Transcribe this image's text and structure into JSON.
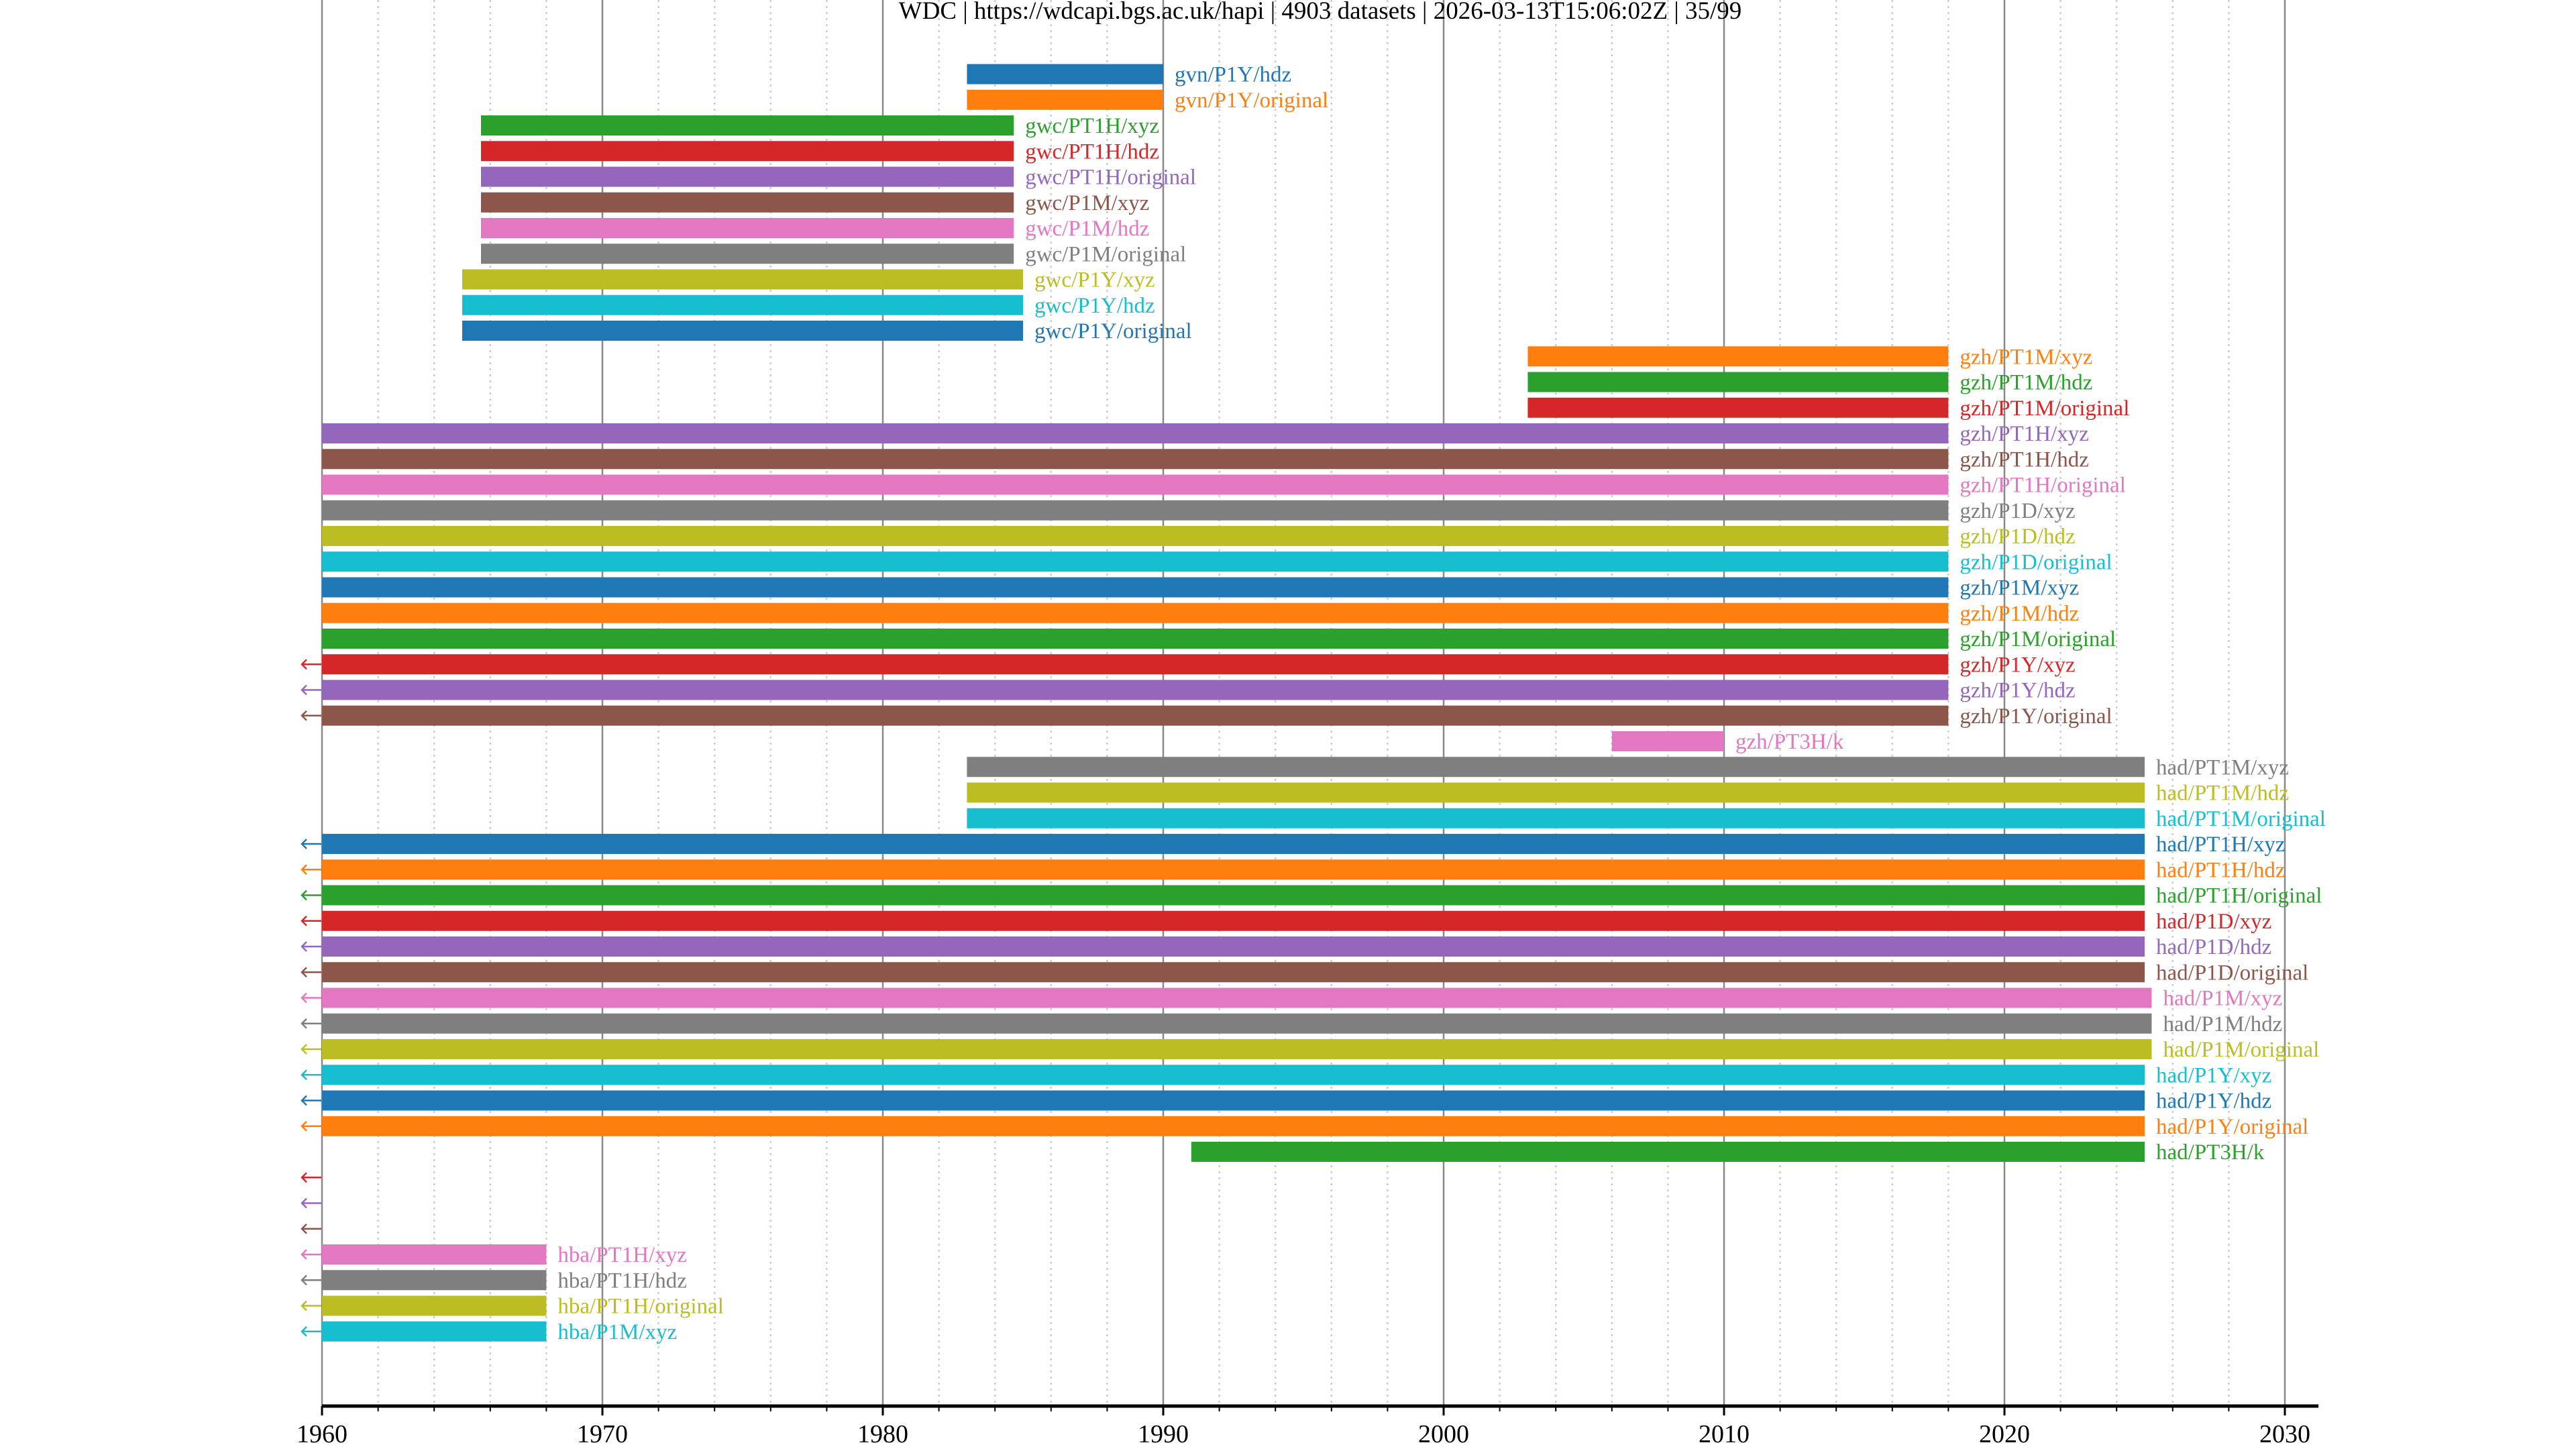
{
  "chart_data": {
    "type": "timeline",
    "title": "WDC | https://wdcapi.bgs.ac.uk/hapi | 4903 datasets | 2026-03-13T15:06:02Z | 35/99",
    "xlabel": "",
    "ylabel": "",
    "xlim": [
      1960,
      2031.2
    ],
    "x_ticks": [
      1960,
      1970,
      1980,
      1990,
      2000,
      2010,
      2020,
      2030
    ],
    "x_tick_labels": [
      "1960",
      "1970",
      "1980",
      "1990",
      "2000",
      "2010",
      "2020",
      "2030"
    ],
    "minor_tick_step_years": 2,
    "grid": {
      "major": "solid",
      "minor": "dotted"
    },
    "legend": "none",
    "palette": [
      "#1f77b4",
      "#ff7f0e",
      "#2ca02c",
      "#d62728",
      "#9467bd",
      "#8c564b",
      "#e377c2",
      "#7f7f7f",
      "#bcbd22",
      "#17becf"
    ],
    "truncated_start_marker": "←",
    "series": [
      {
        "name": "gvn/P1Y/hdz",
        "start": 1983.0,
        "end": 1990.0,
        "truncated_start": false
      },
      {
        "name": "gvn/P1Y/original",
        "start": 1983.0,
        "end": 1990.0,
        "truncated_start": false
      },
      {
        "name": "gwc/PT1H/xyz",
        "start": 1965.67,
        "end": 1984.67,
        "truncated_start": false
      },
      {
        "name": "gwc/PT1H/hdz",
        "start": 1965.67,
        "end": 1984.67,
        "truncated_start": false
      },
      {
        "name": "gwc/PT1H/original",
        "start": 1965.67,
        "end": 1984.67,
        "truncated_start": false
      },
      {
        "name": "gwc/P1M/xyz",
        "start": 1965.67,
        "end": 1984.67,
        "truncated_start": false
      },
      {
        "name": "gwc/P1M/hdz",
        "start": 1965.67,
        "end": 1984.67,
        "truncated_start": false
      },
      {
        "name": "gwc/P1M/original",
        "start": 1965.67,
        "end": 1984.67,
        "truncated_start": false
      },
      {
        "name": "gwc/P1Y/xyz",
        "start": 1965.0,
        "end": 1985.0,
        "truncated_start": false
      },
      {
        "name": "gwc/P1Y/hdz",
        "start": 1965.0,
        "end": 1985.0,
        "truncated_start": false
      },
      {
        "name": "gwc/P1Y/original",
        "start": 1965.0,
        "end": 1985.0,
        "truncated_start": false
      },
      {
        "name": "gzh/PT1M/xyz",
        "start": 2003.0,
        "end": 2018.0,
        "truncated_start": false
      },
      {
        "name": "gzh/PT1M/hdz",
        "start": 2003.0,
        "end": 2018.0,
        "truncated_start": false
      },
      {
        "name": "gzh/PT1M/original",
        "start": 2003.0,
        "end": 2018.0,
        "truncated_start": false
      },
      {
        "name": "gzh/PT1H/xyz",
        "start": 1960.0,
        "end": 2018.0,
        "truncated_start": false
      },
      {
        "name": "gzh/PT1H/hdz",
        "start": 1960.0,
        "end": 2018.0,
        "truncated_start": false
      },
      {
        "name": "gzh/PT1H/original",
        "start": 1960.0,
        "end": 2018.0,
        "truncated_start": false
      },
      {
        "name": "gzh/P1D/xyz",
        "start": 1960.0,
        "end": 2018.0,
        "truncated_start": false
      },
      {
        "name": "gzh/P1D/hdz",
        "start": 1960.0,
        "end": 2018.0,
        "truncated_start": false
      },
      {
        "name": "gzh/P1D/original",
        "start": 1960.0,
        "end": 2018.0,
        "truncated_start": false
      },
      {
        "name": "gzh/P1M/xyz",
        "start": 1960.0,
        "end": 2018.0,
        "truncated_start": false
      },
      {
        "name": "gzh/P1M/hdz",
        "start": 1960.0,
        "end": 2018.0,
        "truncated_start": false
      },
      {
        "name": "gzh/P1M/original",
        "start": 1960.0,
        "end": 2018.0,
        "truncated_start": false
      },
      {
        "name": "gzh/P1Y/xyz",
        "start": 1960.0,
        "end": 2018.0,
        "truncated_start": true
      },
      {
        "name": "gzh/P1Y/hdz",
        "start": 1960.0,
        "end": 2018.0,
        "truncated_start": true
      },
      {
        "name": "gzh/P1Y/original",
        "start": 1960.0,
        "end": 2018.0,
        "truncated_start": true
      },
      {
        "name": "gzh/PT3H/k",
        "start": 2006.0,
        "end": 2010.0,
        "truncated_start": false
      },
      {
        "name": "had/PT1M/xyz",
        "start": 1983.0,
        "end": 2025.0,
        "truncated_start": false
      },
      {
        "name": "had/PT1M/hdz",
        "start": 1983.0,
        "end": 2025.0,
        "truncated_start": false
      },
      {
        "name": "had/PT1M/original",
        "start": 1983.0,
        "end": 2025.0,
        "truncated_start": false
      },
      {
        "name": "had/PT1H/xyz",
        "start": 1960.0,
        "end": 2025.0,
        "truncated_start": true
      },
      {
        "name": "had/PT1H/hdz",
        "start": 1960.0,
        "end": 2025.0,
        "truncated_start": true
      },
      {
        "name": "had/PT1H/original",
        "start": 1960.0,
        "end": 2025.0,
        "truncated_start": true
      },
      {
        "name": "had/P1D/xyz",
        "start": 1960.0,
        "end": 2025.0,
        "truncated_start": true
      },
      {
        "name": "had/P1D/hdz",
        "start": 1960.0,
        "end": 2025.0,
        "truncated_start": true
      },
      {
        "name": "had/P1D/original",
        "start": 1960.0,
        "end": 2025.0,
        "truncated_start": true
      },
      {
        "name": "had/P1M/xyz",
        "start": 1960.0,
        "end": 2025.25,
        "truncated_start": true
      },
      {
        "name": "had/P1M/hdz",
        "start": 1960.0,
        "end": 2025.25,
        "truncated_start": true
      },
      {
        "name": "had/P1M/original",
        "start": 1960.0,
        "end": 2025.25,
        "truncated_start": true
      },
      {
        "name": "had/P1Y/xyz",
        "start": 1960.0,
        "end": 2025.0,
        "truncated_start": true
      },
      {
        "name": "had/P1Y/hdz",
        "start": 1960.0,
        "end": 2025.0,
        "truncated_start": true
      },
      {
        "name": "had/P1Y/original",
        "start": 1960.0,
        "end": 2025.0,
        "truncated_start": true
      },
      {
        "name": "had/PT3H/k",
        "start": 1991.0,
        "end": 2025.0,
        "truncated_start": false
      },
      {
        "name": "",
        "start": null,
        "end": null,
        "truncated_start": true
      },
      {
        "name": "",
        "start": null,
        "end": null,
        "truncated_start": true
      },
      {
        "name": "",
        "start": null,
        "end": null,
        "truncated_start": true
      },
      {
        "name": "hba/PT1H/xyz",
        "start": 1960.0,
        "end": 1968.0,
        "truncated_start": true
      },
      {
        "name": "hba/PT1H/hdz",
        "start": 1960.0,
        "end": 1968.0,
        "truncated_start": true
      },
      {
        "name": "hba/PT1H/original",
        "start": 1960.0,
        "end": 1968.0,
        "truncated_start": true
      },
      {
        "name": "hba/P1M/xyz",
        "start": 1960.0,
        "end": 1968.0,
        "truncated_start": true
      }
    ]
  }
}
